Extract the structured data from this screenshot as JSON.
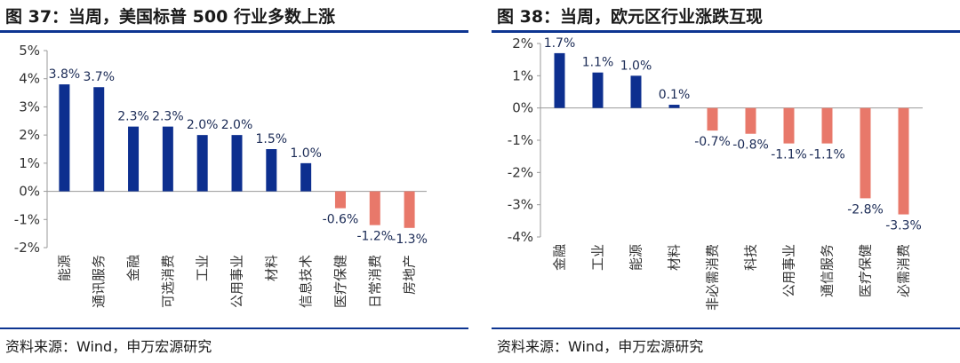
{
  "left": {
    "title": "图 37：当周，美国标普 500 行业多数上涨",
    "source": "资料来源：Wind，申万宏源研究"
  },
  "right": {
    "title": "图 38：当周，欧元区行业涨跌互现",
    "source": "资料来源：Wind，申万宏源研究"
  },
  "colors": {
    "positive": "#0d2f8f",
    "negative": "#e8786a",
    "rule": "#0d3591"
  },
  "chart_data": [
    {
      "type": "bar",
      "categories": [
        "能源",
        "通讯服务",
        "金融",
        "可选消费",
        "工业",
        "公用事业",
        "材料",
        "信息技术",
        "医疗保健",
        "日常消费",
        "房地产"
      ],
      "values": [
        3.8,
        3.7,
        2.3,
        2.3,
        2.0,
        2.0,
        1.5,
        1.0,
        -0.6,
        -1.2,
        -1.3
      ],
      "data_labels": [
        "3.8%",
        "3.7%",
        "2.3%",
        "2.3%",
        "2.0%",
        "2.0%",
        "1.5%",
        "1.0%",
        "-0.6%",
        "-1.2%",
        "-1.3%"
      ],
      "yticks": [
        5,
        4,
        3,
        2,
        1,
        0,
        -1,
        -2
      ],
      "ytick_labels": [
        "5%",
        "4%",
        "3%",
        "2%",
        "1%",
        "0%",
        "-1%",
        "-2%"
      ],
      "ylim": [
        -2,
        5
      ],
      "xlabel": "",
      "ylabel": "",
      "title": ""
    },
    {
      "type": "bar",
      "categories": [
        "金融",
        "工业",
        "能源",
        "材料",
        "非必需消费",
        "科技",
        "公用事业",
        "通信服务",
        "医疗保健",
        "必需消费"
      ],
      "values": [
        1.7,
        1.1,
        1.0,
        0.1,
        -0.7,
        -0.8,
        -1.1,
        -1.1,
        -2.8,
        -3.3
      ],
      "data_labels": [
        "1.7%",
        "1.1%",
        "1.0%",
        "0.1%",
        "-0.7%",
        "-0.8%",
        "-1.1%",
        "-1.1%",
        "-2.8%",
        "-3.3%"
      ],
      "yticks": [
        2,
        1,
        0,
        -1,
        -2,
        -3,
        -4
      ],
      "ytick_labels": [
        "2%",
        "1%",
        "0%",
        "-1%",
        "-2%",
        "-3%",
        "-4%"
      ],
      "ylim": [
        -4,
        2
      ],
      "xlabel": "",
      "ylabel": "",
      "title": ""
    }
  ]
}
